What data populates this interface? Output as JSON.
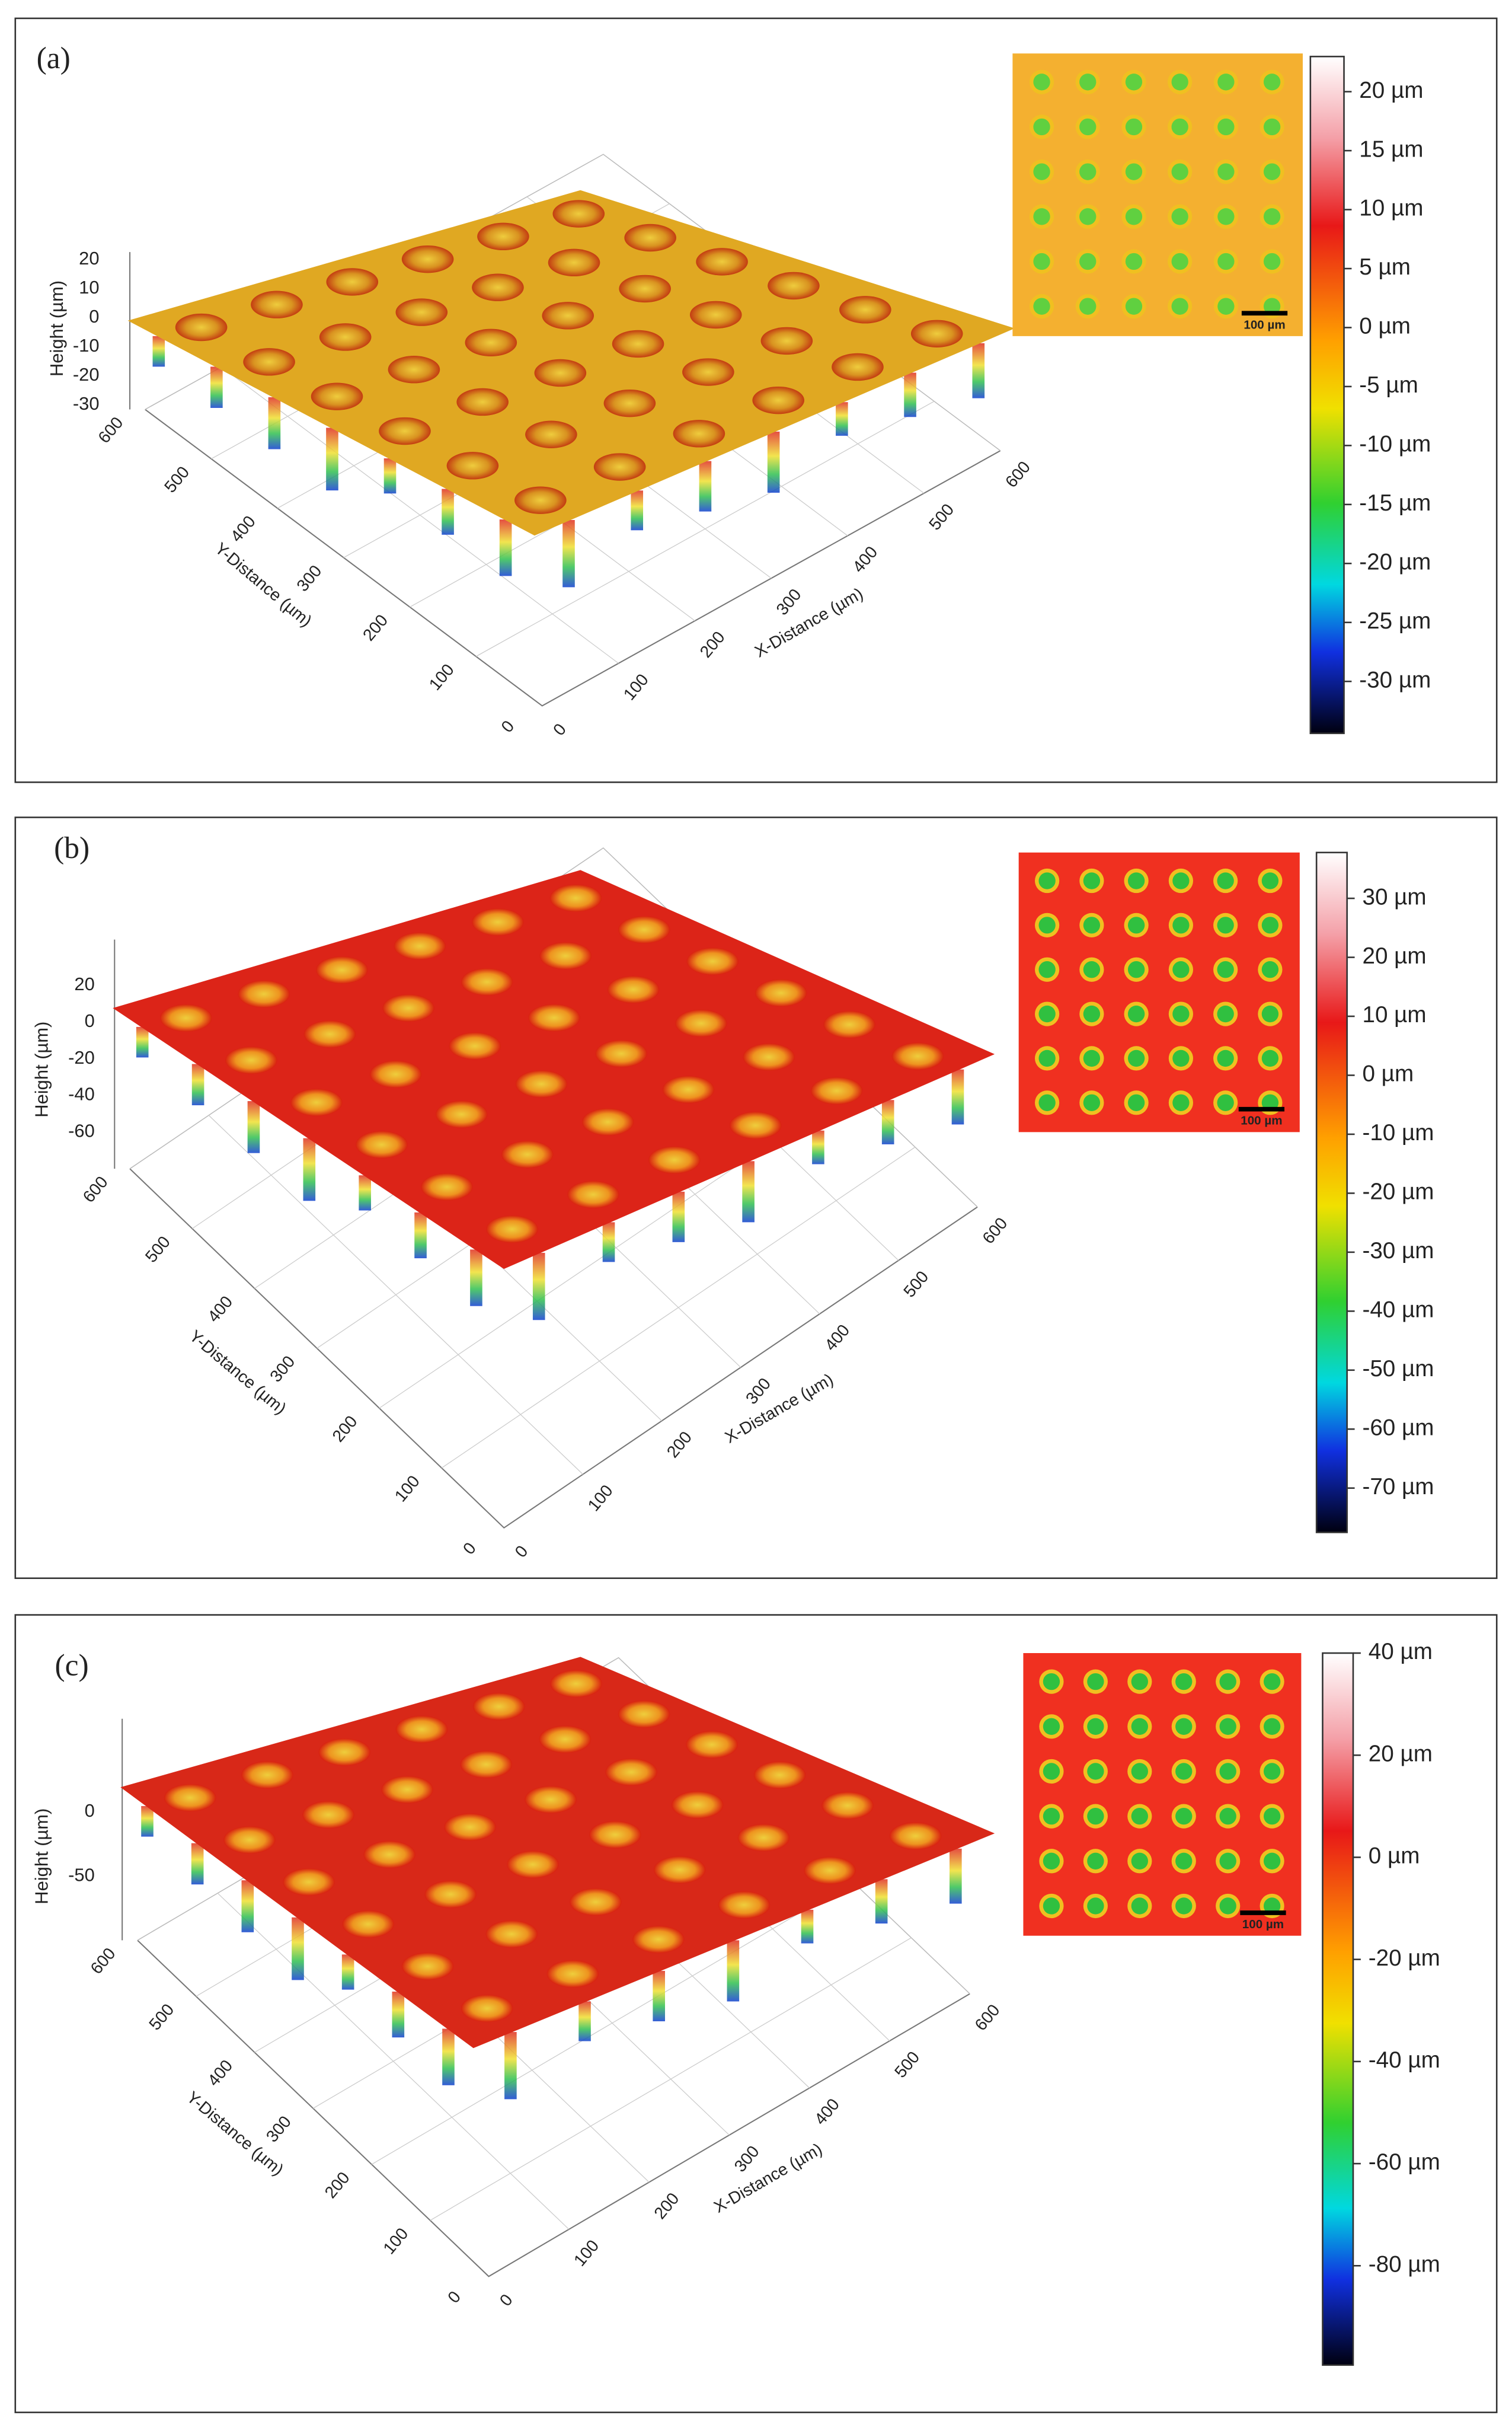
{
  "panels": [
    {
      "label": "(a)",
      "z_label": "Height (µm)",
      "z_ticks": [
        "20",
        "10",
        "0",
        "-10",
        "-20",
        "-30"
      ],
      "y_label": "Y-Distance (µm)",
      "y_ticks": [
        "600",
        "500",
        "400",
        "300",
        "200",
        "100",
        "0"
      ],
      "x_label": "X-Distance (µm)",
      "x_ticks": [
        "0",
        "100",
        "200",
        "300",
        "400",
        "500",
        "600"
      ],
      "colorbar_ticks": [
        "20 µm",
        "15 µm",
        "10 µm",
        "5 µm",
        "0 µm",
        "-5 µm",
        "-10 µm",
        "-15 µm",
        "-20 µm",
        "-25 µm",
        "-30 µm"
      ],
      "scale_bar": "100 µm"
    },
    {
      "label": "(b)",
      "z_label": "Height (µm)",
      "z_ticks": [
        "20",
        "0",
        "-20",
        "-40",
        "-60"
      ],
      "y_label": "Y-Distance (µm)",
      "y_ticks": [
        "600",
        "500",
        "400",
        "300",
        "200",
        "100",
        "0"
      ],
      "x_label": "X-Distance (µm)",
      "x_ticks": [
        "0",
        "100",
        "200",
        "300",
        "400",
        "500",
        "600"
      ],
      "colorbar_ticks": [
        "30 µm",
        "20 µm",
        "10 µm",
        "0 µm",
        "-10 µm",
        "-20 µm",
        "-30 µm",
        "-40 µm",
        "-50 µm",
        "-60 µm",
        "-70 µm"
      ],
      "scale_bar": "100 µm"
    },
    {
      "label": "(c)",
      "z_label": "Height (µm)",
      "z_ticks": [
        "0",
        "-50"
      ],
      "y_label": "Y-Distance (µm)",
      "y_ticks": [
        "600",
        "500",
        "400",
        "300",
        "200",
        "100",
        "0"
      ],
      "x_label": "X-Distance (µm)",
      "x_ticks": [
        "0",
        "100",
        "200",
        "300",
        "400",
        "500",
        "600"
      ],
      "colorbar_ticks": [
        "40 µm",
        "20 µm",
        "0 µm",
        "-20 µm",
        "-40 µm",
        "-60 µm",
        "-80 µm"
      ],
      "scale_bar": "100 µm"
    }
  ]
}
